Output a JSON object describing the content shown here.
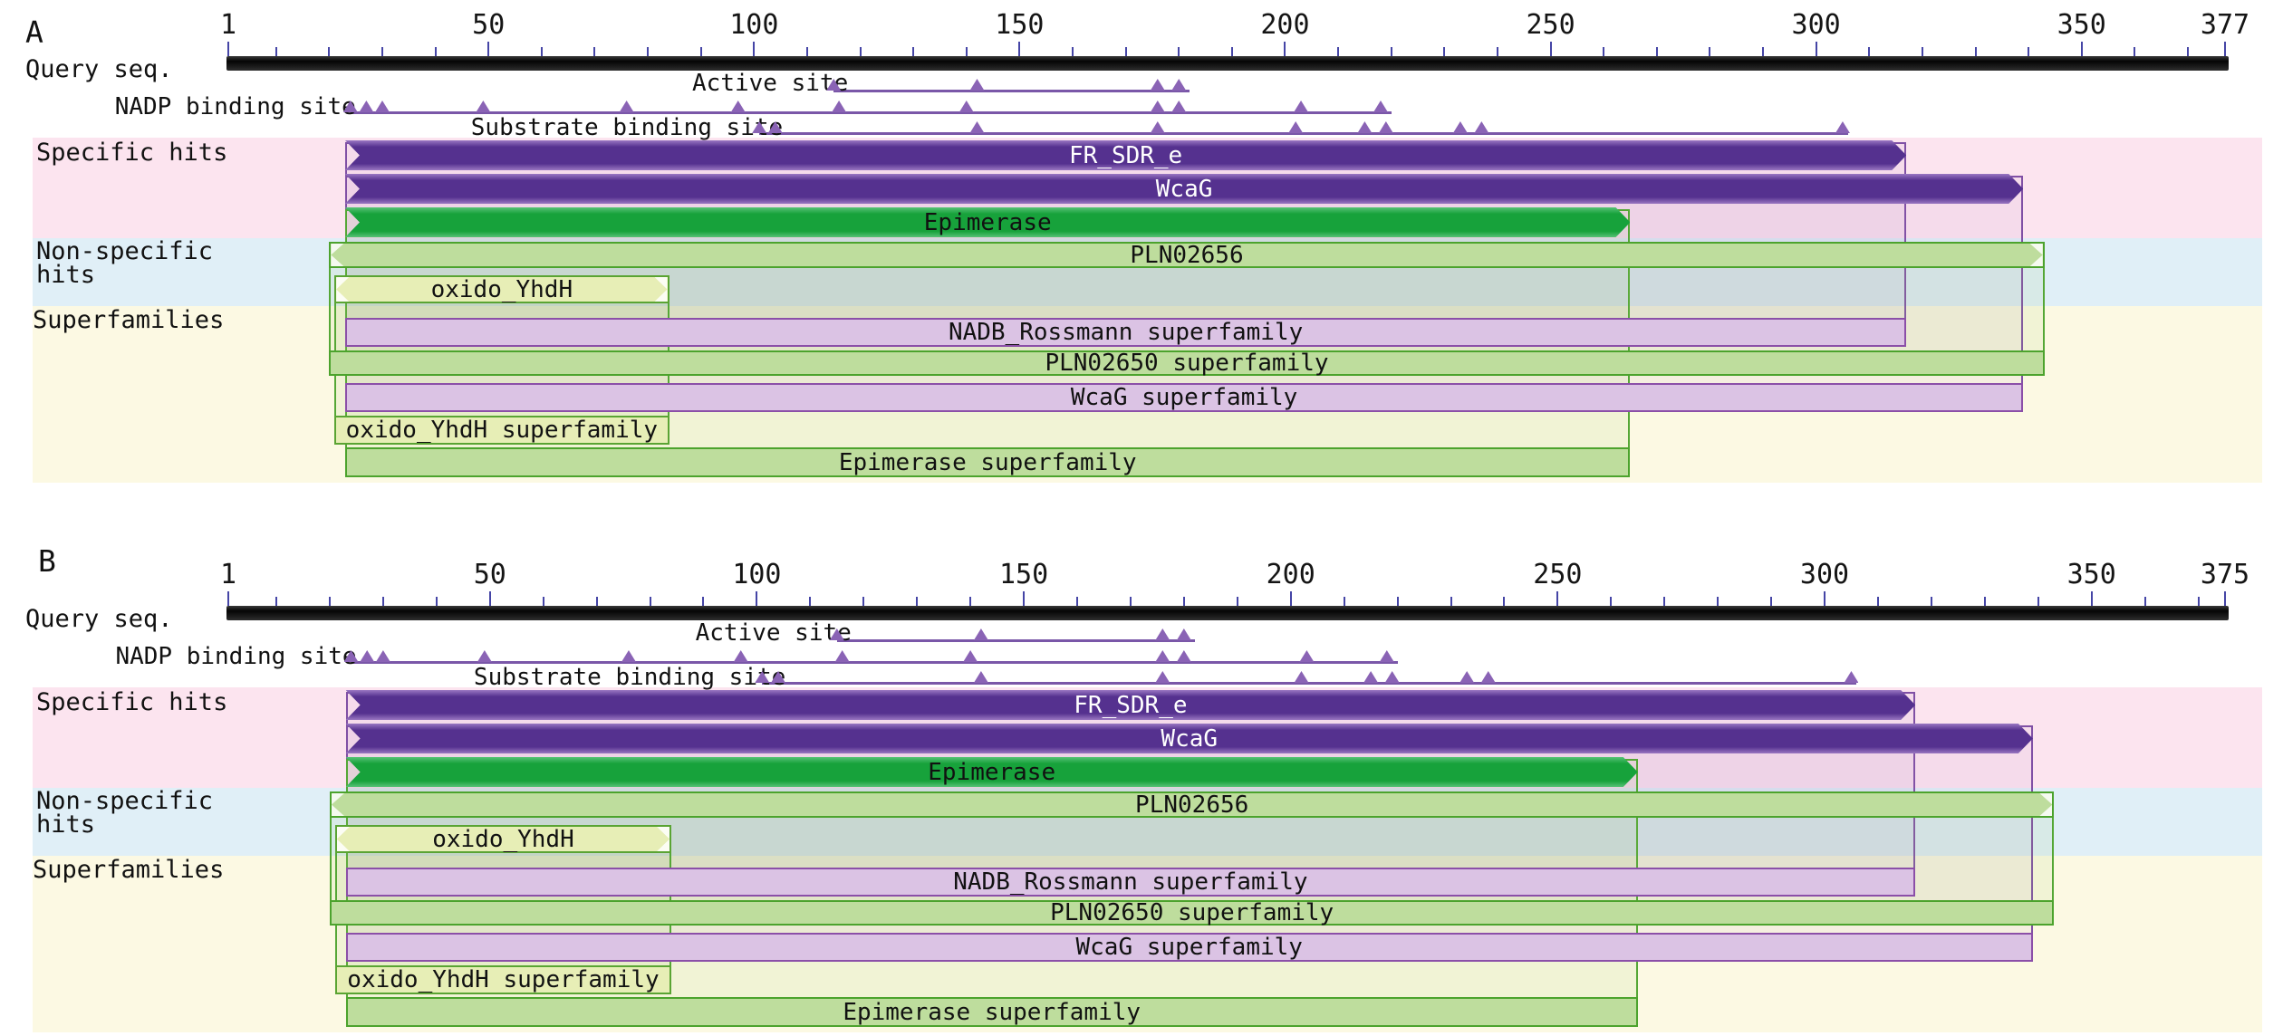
{
  "colors": {
    "purple_hit": "#55318f",
    "purple_hit_edge": "#9a77c2",
    "green_hit": "#17a23b",
    "light_green_fill": "#bedd9d",
    "light_green_border": "#4ca32d",
    "pale_green_fill": "#e7eeb6",
    "pale_green_border": "#5aa433",
    "lavender_fill": "#dbc3e4",
    "lavender_border": "#8b4fa8",
    "band_pink": "#fce4ef",
    "band_blue": "#e0eff7",
    "band_yellow": "#fcf9e3",
    "marker_fill": "#8a63b5",
    "marker_line": "#7a57a8",
    "ruler_tick": "#4545a6",
    "white_text": "#ffffff",
    "black_text": "#111111"
  },
  "panels": [
    {
      "letter": "A",
      "query_length": 377,
      "ruler_labels": [
        1,
        50,
        100,
        150,
        200,
        250,
        300,
        350,
        377
      ],
      "query_label": "Query seq.",
      "group_labels": {
        "specific": "Specific hits",
        "non_specific_line1": "Non-specific",
        "non_specific_line2": "hits",
        "superfamilies": "Superfamilies"
      },
      "features": [
        {
          "name": "Active site",
          "line": [
            115,
            182
          ],
          "markers": [
            115,
            142,
            176,
            180
          ]
        },
        {
          "name": "NADP binding site",
          "line": [
            24,
            220
          ],
          "markers": [
            24,
            27,
            30,
            49,
            76,
            97,
            116,
            140,
            176,
            180,
            203,
            218
          ]
        },
        {
          "name": "Substrate binding site",
          "line": [
            101,
            306
          ],
          "markers": [
            101,
            104,
            142,
            176,
            202,
            215,
            219,
            233,
            237,
            305
          ]
        }
      ],
      "specific_hits": [
        {
          "label": "FR_SDR_e",
          "start": 23,
          "end": 317,
          "style": "purple"
        },
        {
          "label": "WcaG",
          "start": 23,
          "end": 339,
          "style": "purple"
        },
        {
          "label": "Epimerase",
          "start": 23,
          "end": 265,
          "style": "green"
        }
      ],
      "non_specific_hits": [
        {
          "label": "PLN02656",
          "start": 20,
          "end": 343,
          "style": "light-green"
        },
        {
          "label": "oxido_YhdH",
          "start": 21,
          "end": 84,
          "style": "pale-green"
        }
      ],
      "superfamilies": [
        {
          "label": "NADB_Rossmann superfamily",
          "start": 23,
          "end": 317,
          "style": "lavender"
        },
        {
          "label": "PLN02650 superfamily",
          "start": 20,
          "end": 343,
          "style": "light-green"
        },
        {
          "label": "WcaG superfamily",
          "start": 23,
          "end": 339,
          "style": "lavender"
        },
        {
          "label": "oxido_YhdH superfamily",
          "start": 21,
          "end": 84,
          "style": "pale-green"
        },
        {
          "label": "Epimerase superfamily",
          "start": 23,
          "end": 265,
          "style": "light-green"
        }
      ]
    },
    {
      "letter": "B",
      "query_length": 375,
      "ruler_labels": [
        1,
        50,
        100,
        150,
        200,
        250,
        300,
        350,
        375
      ],
      "query_label": "Query seq.",
      "group_labels": {
        "specific": "Specific hits",
        "non_specific_line1": "Non-specific",
        "non_specific_line2": "hits",
        "superfamilies": "Superfamilies"
      },
      "features": [
        {
          "name": "Active site",
          "line": [
            115,
            182
          ],
          "markers": [
            115,
            142,
            176,
            180
          ]
        },
        {
          "name": "NADP binding site",
          "line": [
            24,
            220
          ],
          "markers": [
            24,
            27,
            30,
            49,
            76,
            97,
            116,
            140,
            176,
            180,
            203,
            218
          ]
        },
        {
          "name": "Substrate binding site",
          "line": [
            101,
            306
          ],
          "markers": [
            101,
            104,
            142,
            176,
            202,
            215,
            219,
            233,
            237,
            305
          ]
        }
      ],
      "specific_hits": [
        {
          "label": "FR_SDR_e",
          "start": 23,
          "end": 317,
          "style": "purple"
        },
        {
          "label": "WcaG",
          "start": 23,
          "end": 339,
          "style": "purple"
        },
        {
          "label": "Epimerase",
          "start": 23,
          "end": 265,
          "style": "green"
        }
      ],
      "non_specific_hits": [
        {
          "label": "PLN02656",
          "start": 20,
          "end": 343,
          "style": "light-green"
        },
        {
          "label": "oxido_YhdH",
          "start": 21,
          "end": 84,
          "style": "pale-green"
        }
      ],
      "superfamilies": [
        {
          "label": "NADB_Rossmann superfamily",
          "start": 23,
          "end": 317,
          "style": "lavender"
        },
        {
          "label": "PLN02650 superfamily",
          "start": 20,
          "end": 343,
          "style": "light-green"
        },
        {
          "label": "WcaG superfamily",
          "start": 23,
          "end": 339,
          "style": "lavender"
        },
        {
          "label": "oxido_YhdH superfamily",
          "start": 21,
          "end": 84,
          "style": "pale-green"
        },
        {
          "label": "Epimerase superfamily",
          "start": 23,
          "end": 265,
          "style": "light-green"
        }
      ]
    }
  ]
}
